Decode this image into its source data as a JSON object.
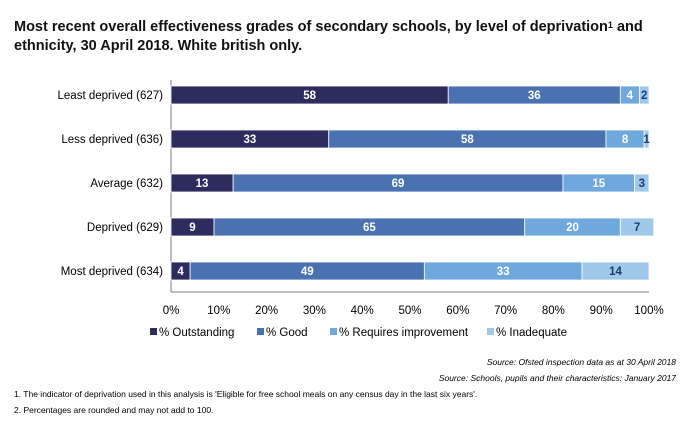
{
  "title_main": "Most recent overall effectiveness grades of secondary schools, by level of deprivation",
  "title_sup": "1",
  "title_tail": " and ethnicity, 30 April 2018. White british only.",
  "chart_data": {
    "type": "bar",
    "orientation": "horizontal",
    "stacked": true,
    "categories": [
      "Least deprived (627)",
      "Less deprived (636)",
      "Average (632)",
      "Deprived (629)",
      "Most deprived (634)"
    ],
    "series": [
      {
        "name": "% Outstanding",
        "color": "#2e2b5f",
        "label_color": "#ffffff",
        "values": [
          58,
          33,
          13,
          9,
          4
        ]
      },
      {
        "name": "% Good",
        "color": "#4a72b0",
        "label_color": "#ffffff",
        "values": [
          36,
          58,
          69,
          65,
          49
        ]
      },
      {
        "name": "% Requires improvement",
        "color": "#6fa8dc",
        "label_color": "#ffffff",
        "values": [
          4,
          8,
          15,
          20,
          33
        ]
      },
      {
        "name": "% Inadequate",
        "color": "#9fc8ea",
        "label_color": "#1f3b6e",
        "values": [
          2,
          1,
          3,
          7,
          14
        ]
      }
    ],
    "xlim": [
      0,
      100
    ],
    "xticks": [
      "0%",
      "10%",
      "20%",
      "30%",
      "40%",
      "50%",
      "60%",
      "70%",
      "80%",
      "90%",
      "100%"
    ],
    "legend_position": "bottom"
  },
  "sources": [
    "Source: Ofsted inspection data as at 30 April 2018",
    "Source: Schools, pupils and their characteristics: January 2017"
  ],
  "notes": [
    "1. The indicator of deprivation used in this analysis is 'Eligible for free school meals on any census day in the last six years'.",
    "2. Percentages are rounded and may not add to 100."
  ]
}
